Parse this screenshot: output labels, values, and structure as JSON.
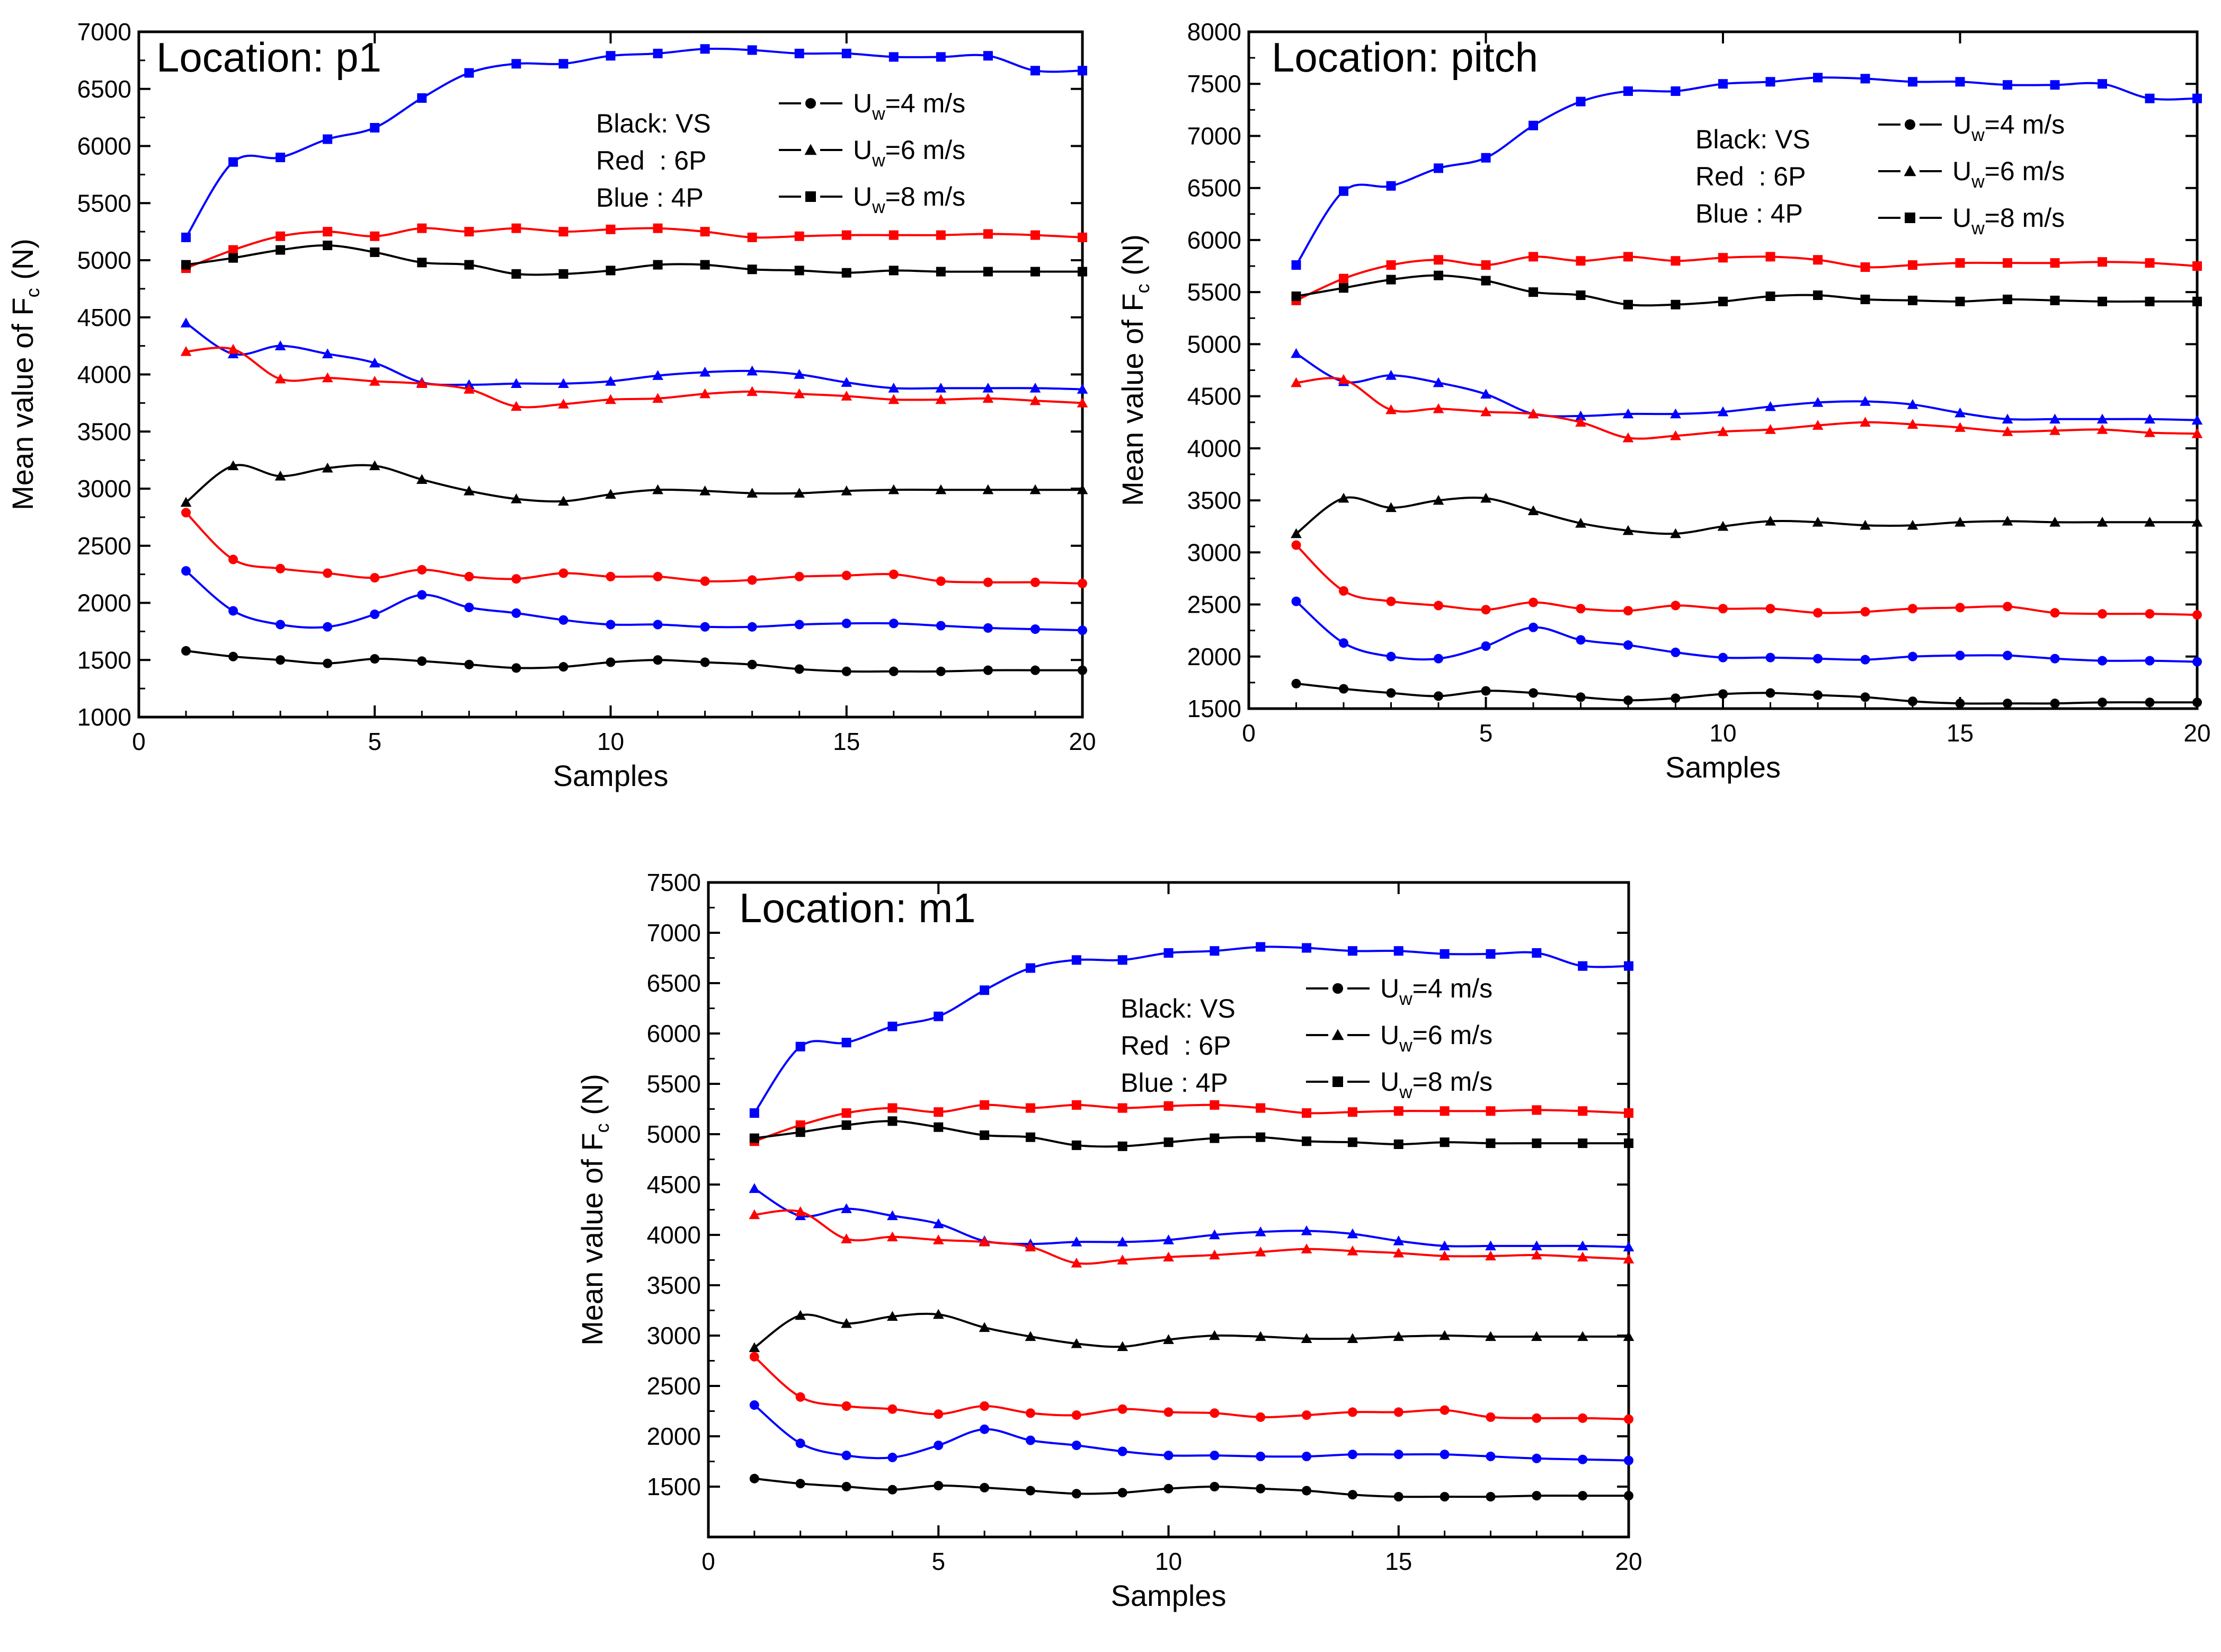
{
  "figure_colors": {
    "VS": "#000000",
    "6P": "#ff0000",
    "4P": "#0000ff"
  },
  "chart_data": [
    {
      "type": "line",
      "title": "Location: p1",
      "xlabel": "Samples",
      "ylabel_prefix": "Mean value of F",
      "ylabel_sub": "c",
      "ylabel_suffix": " (N)",
      "xlim": [
        0,
        20
      ],
      "ylim": [
        1000,
        7000
      ],
      "xticks": [
        0,
        5,
        10,
        15,
        20
      ],
      "yticks": [
        1000,
        1500,
        2000,
        2500,
        3000,
        3500,
        4000,
        4500,
        5000,
        5500,
        6000,
        6500,
        7000
      ],
      "notes": [
        "Black: VS",
        "Red  : 6P",
        "Blue : 4P"
      ],
      "legend": [
        {
          "prefix": "U",
          "sub": "w",
          "text": "=4 m/s",
          "marker": "circle"
        },
        {
          "prefix": "U",
          "sub": "w",
          "text": "=6 m/s",
          "marker": "triangle"
        },
        {
          "prefix": "U",
          "sub": "w",
          "text": "=8 m/s",
          "marker": "square"
        }
      ],
      "x": [
        1,
        2,
        3,
        4,
        5,
        6,
        7,
        8,
        9,
        10,
        11,
        12,
        13,
        14,
        15,
        16,
        17,
        18,
        19,
        20
      ],
      "series": [
        {
          "group": "4P",
          "speed": "8",
          "marker": "square",
          "values": [
            5200,
            5860,
            5900,
            6060,
            6160,
            6420,
            6640,
            6720,
            6720,
            6790,
            6810,
            6850,
            6840,
            6810,
            6810,
            6780,
            6780,
            6790,
            6660,
            6660
          ]
        },
        {
          "group": "6P",
          "speed": "8",
          "marker": "square",
          "values": [
            4930,
            5090,
            5210,
            5250,
            5210,
            5280,
            5250,
            5280,
            5250,
            5270,
            5280,
            5250,
            5200,
            5210,
            5220,
            5220,
            5220,
            5230,
            5220,
            5200
          ]
        },
        {
          "group": "VS",
          "speed": "8",
          "marker": "square",
          "values": [
            4960,
            5020,
            5090,
            5130,
            5070,
            4980,
            4960,
            4880,
            4880,
            4910,
            4960,
            4960,
            4920,
            4910,
            4890,
            4910,
            4900,
            4900,
            4900,
            4900
          ]
        },
        {
          "group": "4P",
          "speed": "6",
          "marker": "triangle",
          "values": [
            4450,
            4180,
            4250,
            4180,
            4100,
            3930,
            3910,
            3920,
            3920,
            3940,
            3990,
            4020,
            4030,
            4000,
            3930,
            3880,
            3880,
            3880,
            3880,
            3870
          ]
        },
        {
          "group": "6P",
          "speed": "6",
          "marker": "triangle",
          "values": [
            4200,
            4220,
            3960,
            3970,
            3940,
            3920,
            3870,
            3720,
            3740,
            3780,
            3790,
            3830,
            3850,
            3830,
            3810,
            3780,
            3780,
            3790,
            3770,
            3750
          ]
        },
        {
          "group": "VS",
          "speed": "6",
          "marker": "triangle",
          "values": [
            2880,
            3200,
            3110,
            3180,
            3200,
            3080,
            2980,
            2910,
            2890,
            2950,
            2990,
            2980,
            2960,
            2960,
            2980,
            2990,
            2990,
            2990,
            2990,
            2990
          ]
        },
        {
          "group": "6P",
          "speed": "4",
          "marker": "circle",
          "values": [
            2790,
            2380,
            2300,
            2260,
            2220,
            2290,
            2230,
            2210,
            2260,
            2230,
            2230,
            2190,
            2200,
            2230,
            2240,
            2250,
            2190,
            2180,
            2180,
            2170
          ]
        },
        {
          "group": "4P",
          "speed": "4",
          "marker": "circle",
          "values": [
            2280,
            1930,
            1810,
            1790,
            1900,
            2070,
            1960,
            1910,
            1850,
            1810,
            1810,
            1790,
            1790,
            1810,
            1820,
            1820,
            1800,
            1780,
            1770,
            1760
          ]
        },
        {
          "group": "VS",
          "speed": "4",
          "marker": "circle",
          "values": [
            1580,
            1530,
            1500,
            1470,
            1510,
            1490,
            1460,
            1430,
            1440,
            1480,
            1500,
            1480,
            1460,
            1420,
            1400,
            1400,
            1400,
            1410,
            1410,
            1410
          ]
        }
      ]
    },
    {
      "type": "line",
      "title": "Location: pitch",
      "xlabel": "Samples",
      "ylabel_prefix": "Mean value of F",
      "ylabel_sub": "c",
      "ylabel_suffix": " (N)",
      "xlim": [
        0,
        20
      ],
      "ylim": [
        1500,
        8000
      ],
      "xticks": [
        0,
        5,
        10,
        15,
        20
      ],
      "yticks": [
        1500,
        2000,
        2500,
        3000,
        3500,
        4000,
        4500,
        5000,
        5500,
        6000,
        6500,
        7000,
        7500,
        8000
      ],
      "notes": [
        "Black: VS",
        "Red  : 6P",
        "Blue : 4P"
      ],
      "legend": [
        {
          "prefix": "U",
          "sub": "w",
          "text": "=4 m/s",
          "marker": "circle"
        },
        {
          "prefix": "U",
          "sub": "w",
          "text": "=6 m/s",
          "marker": "triangle"
        },
        {
          "prefix": "U",
          "sub": "w",
          "text": "=8 m/s",
          "marker": "square"
        }
      ],
      "x": [
        1,
        2,
        3,
        4,
        5,
        6,
        7,
        8,
        9,
        10,
        11,
        12,
        13,
        14,
        15,
        16,
        17,
        18,
        19,
        20
      ],
      "series": [
        {
          "group": "4P",
          "speed": "8",
          "marker": "square",
          "values": [
            5760,
            6470,
            6520,
            6690,
            6790,
            7100,
            7330,
            7430,
            7430,
            7500,
            7520,
            7560,
            7550,
            7520,
            7520,
            7490,
            7490,
            7500,
            7360,
            7360
          ]
        },
        {
          "group": "6P",
          "speed": "8",
          "marker": "square",
          "values": [
            5420,
            5630,
            5760,
            5810,
            5760,
            5840,
            5800,
            5840,
            5800,
            5830,
            5840,
            5810,
            5740,
            5760,
            5780,
            5780,
            5780,
            5790,
            5780,
            5750
          ]
        },
        {
          "group": "VS",
          "speed": "8",
          "marker": "square",
          "values": [
            5460,
            5540,
            5620,
            5660,
            5610,
            5500,
            5470,
            5380,
            5380,
            5410,
            5460,
            5470,
            5430,
            5420,
            5410,
            5430,
            5420,
            5410,
            5410,
            5410
          ]
        },
        {
          "group": "4P",
          "speed": "6",
          "marker": "triangle",
          "values": [
            4910,
            4640,
            4700,
            4630,
            4520,
            4330,
            4310,
            4330,
            4330,
            4350,
            4400,
            4440,
            4450,
            4420,
            4340,
            4280,
            4280,
            4280,
            4280,
            4270
          ]
        },
        {
          "group": "6P",
          "speed": "6",
          "marker": "triangle",
          "values": [
            4630,
            4660,
            4370,
            4380,
            4350,
            4330,
            4250,
            4100,
            4120,
            4160,
            4180,
            4220,
            4250,
            4230,
            4200,
            4160,
            4170,
            4180,
            4150,
            4140
          ]
        },
        {
          "group": "VS",
          "speed": "6",
          "marker": "triangle",
          "values": [
            3180,
            3520,
            3430,
            3500,
            3520,
            3400,
            3280,
            3210,
            3180,
            3250,
            3300,
            3290,
            3260,
            3260,
            3290,
            3300,
            3290,
            3290,
            3290,
            3290
          ]
        },
        {
          "group": "6P",
          "speed": "4",
          "marker": "circle",
          "values": [
            3070,
            2630,
            2530,
            2490,
            2450,
            2520,
            2460,
            2440,
            2490,
            2460,
            2460,
            2420,
            2430,
            2460,
            2470,
            2480,
            2420,
            2410,
            2410,
            2400
          ]
        },
        {
          "group": "4P",
          "speed": "4",
          "marker": "circle",
          "values": [
            2530,
            2130,
            2000,
            1980,
            2100,
            2280,
            2160,
            2110,
            2040,
            1990,
            1990,
            1980,
            1970,
            2000,
            2010,
            2010,
            1980,
            1960,
            1960,
            1950
          ]
        },
        {
          "group": "VS",
          "speed": "4",
          "marker": "circle",
          "values": [
            1740,
            1690,
            1650,
            1620,
            1670,
            1650,
            1610,
            1580,
            1600,
            1640,
            1650,
            1630,
            1610,
            1570,
            1550,
            1550,
            1550,
            1560,
            1560,
            1560
          ]
        }
      ]
    },
    {
      "type": "line",
      "title": "Location: m1",
      "xlabel": "Samples",
      "ylabel_prefix": "Mean value of F",
      "ylabel_sub": "c",
      "ylabel_suffix": " (N)",
      "xlim": [
        0,
        20
      ],
      "ylim": [
        1000,
        7500
      ],
      "xticks": [
        0,
        5,
        10,
        15,
        20
      ],
      "yticks": [
        1500,
        2000,
        2500,
        3000,
        3500,
        4000,
        4500,
        5000,
        5500,
        6000,
        6500,
        7000,
        7500
      ],
      "notes": [
        "Black: VS",
        "Red  : 6P",
        "Blue : 4P"
      ],
      "legend": [
        {
          "prefix": "U",
          "sub": "w",
          "text": "=4 m/s",
          "marker": "circle"
        },
        {
          "prefix": "U",
          "sub": "w",
          "text": "=6 m/s",
          "marker": "triangle"
        },
        {
          "prefix": "U",
          "sub": "w",
          "text": "=8 m/s",
          "marker": "square"
        }
      ],
      "x": [
        1,
        2,
        3,
        4,
        5,
        6,
        7,
        8,
        9,
        10,
        11,
        12,
        13,
        14,
        15,
        16,
        17,
        18,
        19,
        20
      ],
      "series": [
        {
          "group": "4P",
          "speed": "8",
          "marker": "square",
          "values": [
            5210,
            5870,
            5910,
            6070,
            6170,
            6430,
            6650,
            6730,
            6730,
            6800,
            6820,
            6860,
            6850,
            6820,
            6820,
            6790,
            6790,
            6800,
            6670,
            6670
          ]
        },
        {
          "group": "6P",
          "speed": "8",
          "marker": "square",
          "values": [
            4930,
            5090,
            5210,
            5260,
            5220,
            5290,
            5260,
            5290,
            5260,
            5280,
            5290,
            5260,
            5210,
            5220,
            5230,
            5230,
            5230,
            5240,
            5230,
            5210
          ]
        },
        {
          "group": "VS",
          "speed": "8",
          "marker": "square",
          "values": [
            4960,
            5020,
            5090,
            5130,
            5070,
            4990,
            4970,
            4890,
            4880,
            4920,
            4960,
            4970,
            4930,
            4920,
            4900,
            4920,
            4910,
            4910,
            4910,
            4910
          ]
        },
        {
          "group": "4P",
          "speed": "6",
          "marker": "triangle",
          "values": [
            4460,
            4190,
            4260,
            4190,
            4110,
            3940,
            3910,
            3930,
            3930,
            3950,
            4000,
            4030,
            4040,
            4010,
            3940,
            3890,
            3890,
            3890,
            3890,
            3880
          ]
        },
        {
          "group": "6P",
          "speed": "6",
          "marker": "triangle",
          "values": [
            4200,
            4230,
            3960,
            3980,
            3950,
            3930,
            3880,
            3720,
            3750,
            3780,
            3800,
            3830,
            3860,
            3840,
            3820,
            3790,
            3790,
            3800,
            3780,
            3760
          ]
        },
        {
          "group": "VS",
          "speed": "6",
          "marker": "triangle",
          "values": [
            2880,
            3200,
            3120,
            3190,
            3210,
            3080,
            2990,
            2920,
            2890,
            2960,
            3000,
            2990,
            2970,
            2970,
            2990,
            3000,
            2990,
            2990,
            2990,
            2990
          ]
        },
        {
          "group": "6P",
          "speed": "4",
          "marker": "circle",
          "values": [
            2790,
            2390,
            2300,
            2270,
            2220,
            2300,
            2230,
            2210,
            2270,
            2240,
            2230,
            2190,
            2210,
            2240,
            2240,
            2260,
            2190,
            2180,
            2180,
            2170
          ]
        },
        {
          "group": "4P",
          "speed": "4",
          "marker": "circle",
          "values": [
            2310,
            1930,
            1810,
            1790,
            1910,
            2070,
            1960,
            1910,
            1850,
            1810,
            1810,
            1800,
            1800,
            1820,
            1820,
            1820,
            1800,
            1780,
            1770,
            1760
          ]
        },
        {
          "group": "VS",
          "speed": "4",
          "marker": "circle",
          "values": [
            1580,
            1530,
            1500,
            1470,
            1510,
            1490,
            1460,
            1430,
            1440,
            1480,
            1500,
            1480,
            1460,
            1420,
            1400,
            1400,
            1400,
            1410,
            1410,
            1410
          ]
        }
      ]
    }
  ]
}
